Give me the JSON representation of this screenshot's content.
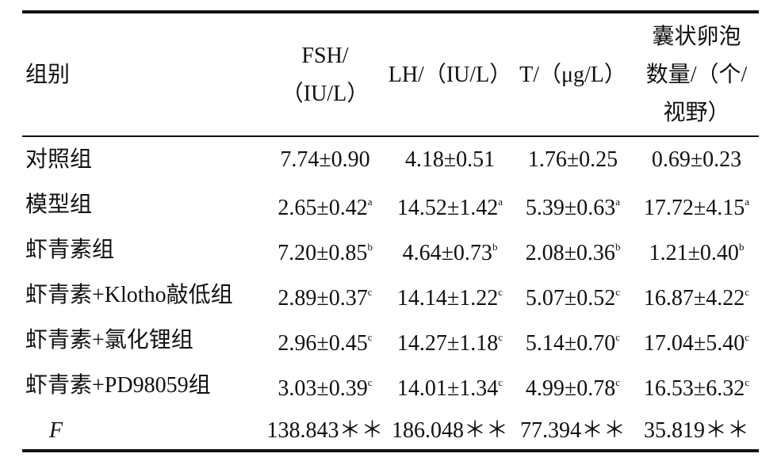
{
  "table": {
    "header": [
      {
        "lines": [
          "组别"
        ]
      },
      {
        "lines": [
          "FSH/",
          "（IU/L）"
        ]
      },
      {
        "lines": [
          "LH/（IU/L）"
        ]
      },
      {
        "lines": [
          "T/（μg/L）"
        ]
      },
      {
        "lines": [
          "囊状卵泡",
          "数量/（个/",
          "视野）"
        ]
      }
    ],
    "rows": [
      [
        {
          "text": "对照组"
        },
        {
          "text": "7.74±0.90"
        },
        {
          "text": "4.18±0.51"
        },
        {
          "text": "1.76±0.25"
        },
        {
          "text": "0.69±0.23"
        }
      ],
      [
        {
          "text": "模型组"
        },
        {
          "text": "2.65±0.42",
          "sup": "a"
        },
        {
          "text": "14.52±1.42",
          "sup": "a"
        },
        {
          "text": "5.39±0.63",
          "sup": "a"
        },
        {
          "text": "17.72±4.15",
          "sup": "a"
        }
      ],
      [
        {
          "text": "虾青素组"
        },
        {
          "text": "7.20±0.85",
          "sup": "b"
        },
        {
          "text": "4.64±0.73",
          "sup": "b"
        },
        {
          "text": "2.08±0.36",
          "sup": "b"
        },
        {
          "text": "1.21±0.40",
          "sup": "b"
        }
      ],
      [
        {
          "text": "虾青素+Klotho敲低组"
        },
        {
          "text": "2.89±0.37",
          "sup": "c"
        },
        {
          "text": "14.14±1.22",
          "sup": "c"
        },
        {
          "text": "5.07±0.52",
          "sup": "c"
        },
        {
          "text": "16.87±4.22",
          "sup": "c"
        }
      ],
      [
        {
          "text": "虾青素+氯化锂组"
        },
        {
          "text": "2.96±0.45",
          "sup": "c"
        },
        {
          "text": "14.27±1.18",
          "sup": "c"
        },
        {
          "text": "5.14±0.70",
          "sup": "c"
        },
        {
          "text": "17.04±5.40",
          "sup": "c"
        }
      ],
      [
        {
          "text": "虾青素+PD98059组"
        },
        {
          "text": "3.03±0.39",
          "sup": "c"
        },
        {
          "text": "14.01±1.34",
          "sup": "c"
        },
        {
          "text": "4.99±0.78",
          "sup": "c"
        },
        {
          "text": "16.53±6.32",
          "sup": "c"
        }
      ],
      [
        {
          "text": "F"
        },
        {
          "text": "138.843＊＊"
        },
        {
          "text": "186.048＊＊"
        },
        {
          "text": "77.394＊＊"
        },
        {
          "text": "35.819＊＊"
        }
      ]
    ]
  }
}
